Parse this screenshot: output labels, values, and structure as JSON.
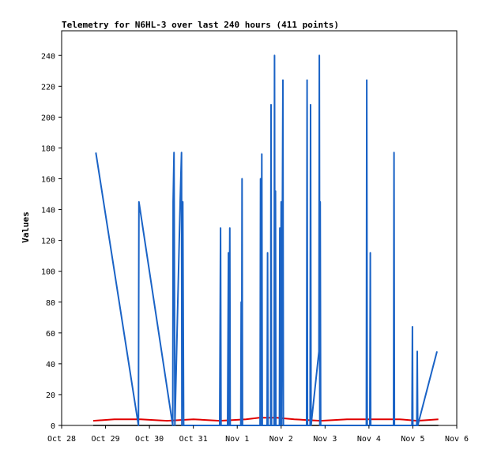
{
  "title": "Telemetry for N6HL-3 over last 240 hours (411 points)",
  "colors": {
    "series_blue": "#1a63c6",
    "series_red": "#e00000",
    "series_black": "#000000",
    "axis": "#000000",
    "background": "#ffffff"
  },
  "chart_data": {
    "type": "line",
    "title": "Telemetry for N6HL-3 over last 240 hours (411 points)",
    "xlabel": "",
    "ylabel": "Values",
    "x_ticks": [
      "Oct 28",
      "Oct 29",
      "Oct 30",
      "Oct 31",
      "Nov 1",
      "Nov 2",
      "Nov 3",
      "Nov 4",
      "Nov 5",
      "Nov 6"
    ],
    "y_ticks": [
      0,
      20,
      40,
      60,
      80,
      100,
      120,
      140,
      160,
      180,
      200,
      220,
      240
    ],
    "xlim": [
      0,
      9
    ],
    "ylim": [
      0,
      256
    ],
    "grid": false,
    "legend": "none",
    "series": [
      {
        "color": "#1a63c6",
        "points": [
          [
            0.78,
            177
          ],
          [
            1.75,
            0
          ],
          [
            1.76,
            145
          ],
          [
            2.53,
            0
          ],
          [
            2.54,
            145
          ],
          [
            2.56,
            177
          ],
          [
            2.58,
            0
          ],
          [
            2.7,
            145
          ],
          [
            2.73,
            177
          ],
          [
            2.74,
            0
          ],
          [
            2.76,
            145
          ],
          [
            2.78,
            0
          ],
          [
            3.6,
            0
          ],
          [
            3.62,
            128
          ],
          [
            3.63,
            0
          ],
          [
            3.78,
            0
          ],
          [
            3.8,
            112
          ],
          [
            3.81,
            0
          ],
          [
            3.83,
            128
          ],
          [
            3.84,
            0
          ],
          [
            4.08,
            0
          ],
          [
            4.09,
            80
          ],
          [
            4.1,
            0
          ],
          [
            4.11,
            160
          ],
          [
            4.12,
            0
          ],
          [
            4.52,
            0
          ],
          [
            4.53,
            160
          ],
          [
            4.54,
            0
          ],
          [
            4.56,
            176
          ],
          [
            4.57,
            0
          ],
          [
            4.68,
            0
          ],
          [
            4.69,
            112
          ],
          [
            4.7,
            0
          ],
          [
            4.76,
            0
          ],
          [
            4.77,
            208
          ],
          [
            4.78,
            0
          ],
          [
            4.84,
            0
          ],
          [
            4.85,
            240
          ],
          [
            4.86,
            0
          ],
          [
            4.87,
            152
          ],
          [
            4.88,
            0
          ],
          [
            4.96,
            0
          ],
          [
            4.97,
            128
          ],
          [
            4.98,
            0
          ],
          [
            5.0,
            145
          ],
          [
            5.01,
            0
          ],
          [
            5.04,
            224
          ],
          [
            5.05,
            0
          ],
          [
            5.58,
            0
          ],
          [
            5.59,
            224
          ],
          [
            5.6,
            0
          ],
          [
            5.66,
            0
          ],
          [
            5.67,
            208
          ],
          [
            5.68,
            0
          ],
          [
            5.86,
            48
          ],
          [
            5.87,
            240
          ],
          [
            5.88,
            0
          ],
          [
            5.89,
            145
          ],
          [
            5.9,
            0
          ],
          [
            6.94,
            0
          ],
          [
            6.95,
            224
          ],
          [
            6.96,
            0
          ],
          [
            7.02,
            0
          ],
          [
            7.03,
            112
          ],
          [
            7.04,
            0
          ],
          [
            7.56,
            0
          ],
          [
            7.57,
            177
          ],
          [
            7.58,
            0
          ],
          [
            7.98,
            0
          ],
          [
            7.99,
            64
          ],
          [
            8.0,
            0
          ],
          [
            8.09,
            0
          ],
          [
            8.1,
            48
          ],
          [
            8.11,
            0
          ],
          [
            8.55,
            48
          ]
        ]
      },
      {
        "color": "#e00000",
        "points": [
          [
            0.72,
            3
          ],
          [
            1.2,
            4
          ],
          [
            1.8,
            4
          ],
          [
            2.4,
            3
          ],
          [
            3.0,
            4
          ],
          [
            3.6,
            3
          ],
          [
            4.2,
            4
          ],
          [
            4.5,
            5
          ],
          [
            4.9,
            5
          ],
          [
            5.3,
            4
          ],
          [
            5.9,
            3
          ],
          [
            6.5,
            4
          ],
          [
            7.1,
            4
          ],
          [
            7.7,
            4
          ],
          [
            8.1,
            3
          ],
          [
            8.58,
            4
          ]
        ]
      },
      {
        "color": "#000000",
        "points": [
          [
            0.72,
            0
          ],
          [
            8.58,
            0
          ]
        ]
      }
    ]
  }
}
